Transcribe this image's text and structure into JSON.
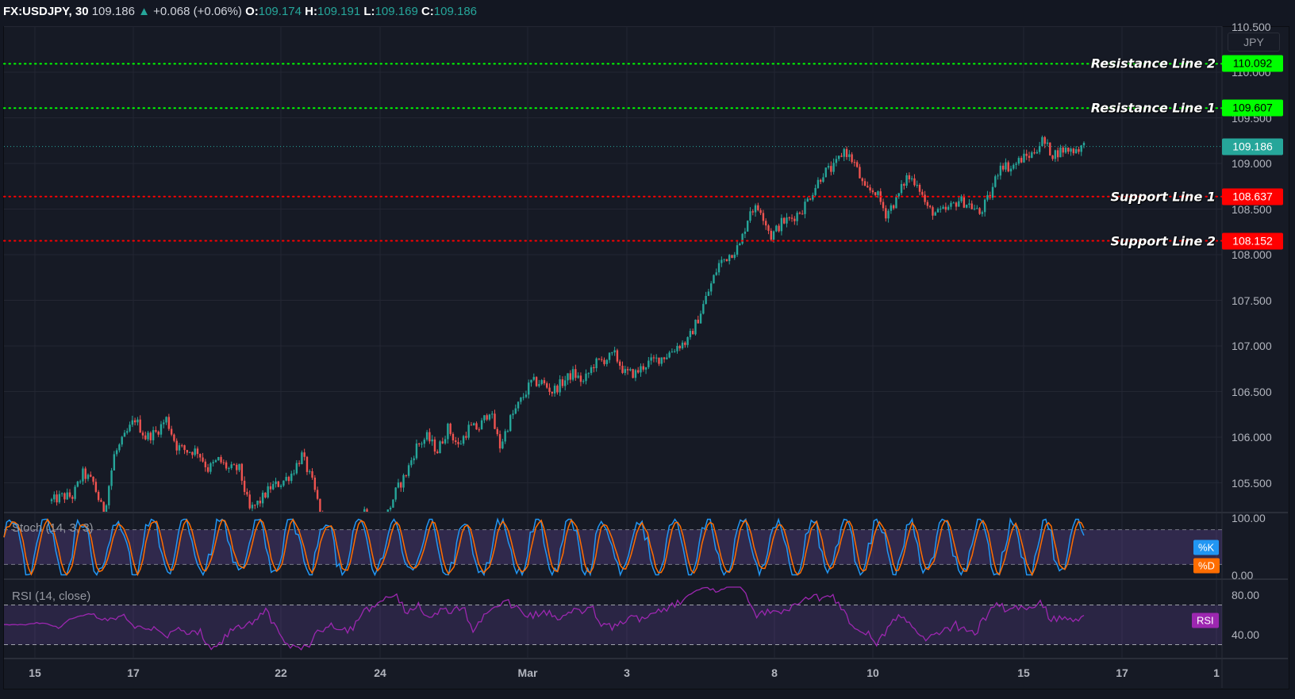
{
  "header": {
    "symbol": "FX:USDJPY, 30",
    "last": "109.186",
    "change": "+0.068 (+0.06%)",
    "o_label": "O:",
    "o": "109.174",
    "h_label": "H:",
    "h": "109.191",
    "l_label": "L:",
    "l": "109.169",
    "c_label": "C:",
    "c": "109.186"
  },
  "currency": "JPY",
  "colors": {
    "up": "#26a69a",
    "down": "#ef5350",
    "resistance": "#00ff00",
    "support": "#ff0000",
    "k": "#2196f3",
    "d": "#ff6d00",
    "rsi": "#9c27b0",
    "last": "#26a69a"
  },
  "chart_data": [
    {
      "type": "candlestick",
      "title": "FX:USDJPY, 30",
      "ylabel": "JPY",
      "ylim": [
        105.18,
        110.55
      ],
      "y_ticks": [
        "110.500",
        "110.000",
        "109.500",
        "109.000",
        "108.500",
        "108.000",
        "107.500",
        "107.000",
        "106.500",
        "106.000",
        "105.500"
      ],
      "x_ticks": [
        "15",
        "17",
        "22",
        "24",
        "Mar",
        "3",
        "8",
        "10",
        "15",
        "17",
        "1"
      ],
      "grid": true,
      "closes": [
        105.3,
        105.35,
        105.35,
        105.6,
        105.5,
        105.15,
        105.8,
        106.0,
        106.2,
        106.0,
        106.05,
        106.2,
        105.9,
        105.85,
        105.85,
        105.65,
        105.75,
        105.65,
        105.65,
        105.2,
        105.3,
        105.45,
        105.5,
        105.6,
        105.8,
        105.5,
        105.1,
        104.9,
        104.9,
        105.1,
        105.2,
        105.1,
        105.1,
        105.4,
        105.6,
        105.9,
        106.0,
        105.85,
        106.1,
        105.9,
        106.1,
        106.1,
        106.3,
        105.9,
        106.2,
        106.4,
        106.6,
        106.6,
        106.5,
        106.6,
        106.7,
        106.6,
        106.8,
        106.85,
        106.9,
        106.7,
        106.7,
        106.8,
        106.85,
        106.9,
        107.0,
        107.05,
        107.3,
        107.6,
        107.9,
        108.0,
        108.1,
        108.5,
        108.5,
        108.2,
        108.35,
        108.4,
        108.5,
        108.7,
        108.9,
        108.95,
        109.15,
        109.0,
        108.7,
        108.7,
        108.45,
        108.6,
        108.85,
        108.8,
        108.5,
        108.45,
        108.5,
        108.6,
        108.55,
        108.45,
        108.65,
        109.0,
        108.95,
        109.05,
        109.1,
        109.25,
        109.1,
        109.15,
        109.15,
        109.19
      ],
      "last_price": {
        "value": 109.186,
        "label": "109.186"
      },
      "lines": [
        {
          "name": "Resistance Line 2",
          "value": 110.092,
          "label": "110.092",
          "kind": "resistance"
        },
        {
          "name": "Resistance Line 1",
          "value": 109.607,
          "label": "109.607",
          "kind": "resistance"
        },
        {
          "name": "Support Line 1",
          "value": 108.637,
          "label": "108.637",
          "kind": "support"
        },
        {
          "name": "Support Line 2",
          "value": 108.152,
          "label": "108.152",
          "kind": "support"
        }
      ]
    },
    {
      "type": "line",
      "title": "Stoch (14, 3, 3)",
      "ylim": [
        0,
        100
      ],
      "y_ticks": [
        "100.00",
        "0.00"
      ],
      "bands": [
        80,
        20
      ],
      "series": [
        {
          "name": "%K"
        },
        {
          "name": "%D"
        }
      ]
    },
    {
      "type": "line",
      "title": "RSI (14, close)",
      "ylim": [
        20,
        90
      ],
      "y_ticks": [
        "80.00",
        "40.00"
      ],
      "bands": [
        70,
        30
      ],
      "series": [
        {
          "name": "RSI"
        }
      ]
    }
  ]
}
